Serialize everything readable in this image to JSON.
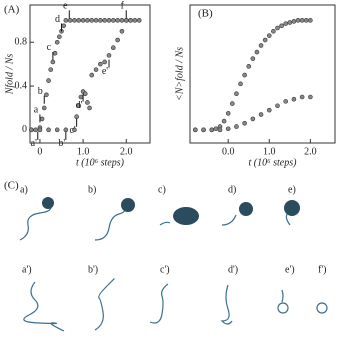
{
  "chart_data": [
    {
      "type": "scatter",
      "panel_label": "(A)",
      "xlabel": "t (10⁶ steps)",
      "ylabel": "Nfold / Ns",
      "xlim": [
        -0.23,
        2.55
      ],
      "ylim": [
        -0.12,
        1.14
      ],
      "xticks": [
        0,
        {
          "value": 1,
          "label": "1.0"
        },
        {
          "value": 2,
          "label": "2.0"
        }
      ],
      "yticks": [
        0,
        0.4,
        0.8
      ],
      "series": [
        {
          "color": "#888888",
          "x": [
            -0.2,
            -0.1,
            0,
            0.05,
            0.1,
            0.15,
            0.2,
            0.25,
            0.3,
            0.35,
            0.4,
            0.45,
            0.5,
            0.55,
            0.6,
            0.7,
            0.8,
            0.9,
            1.0,
            1.1,
            1.2,
            1.3,
            1.4,
            1.5,
            1.6,
            1.7,
            1.8,
            1.9,
            2.0,
            2.1,
            2.2,
            2.3
          ],
          "values": [
            0,
            0,
            0.02,
            0.1,
            0.2,
            0.32,
            0.45,
            0.55,
            0.62,
            0.7,
            0.8,
            0.85,
            0.9,
            0.95,
            1,
            1,
            1,
            1,
            1,
            1,
            1,
            1,
            1,
            1,
            1,
            1,
            1,
            1,
            1,
            1,
            1,
            1
          ]
        },
        {
          "color": "#888888",
          "x": [
            -0.2,
            0,
            0.2,
            0.4,
            0.6,
            0.8,
            0.85,
            0.9,
            0.95,
            1.0,
            1.05,
            1.1,
            1.15,
            1.2,
            1.3,
            1.4,
            1.5,
            1.6,
            1.7,
            1.8,
            1.9,
            2.0,
            2.1
          ],
          "values": [
            0,
            0,
            0,
            0,
            0,
            0,
            0.12,
            0.22,
            0.3,
            0.35,
            0.33,
            0.25,
            0.2,
            0.5,
            0.55,
            0.6,
            0.62,
            0.68,
            0.75,
            0.82,
            0.9,
            1.0,
            1.0
          ]
        }
      ],
      "annotations": [
        {
          "text": "a",
          "x": 0.0,
          "y": 0.05
        },
        {
          "text": "b",
          "x": 0.1,
          "y": 0.22
        },
        {
          "text": "c",
          "x": 0.3,
          "y": 0.62
        },
        {
          "text": "d",
          "x": 0.5,
          "y": 0.88
        },
        {
          "text": "e",
          "x": 0.68,
          "y": 1.0
        },
        {
          "text": "a'",
          "x": -0.05,
          "y": 0.0
        },
        {
          "text": "b'",
          "x": 0.6,
          "y": 0.0
        },
        {
          "text": "c'",
          "x": 0.85,
          "y": 0.12
        },
        {
          "text": "d'",
          "x": 1.0,
          "y": 0.35
        },
        {
          "text": "e'",
          "x": 1.6,
          "y": 0.66
        },
        {
          "text": "f",
          "x": 2.0,
          "y": 1.0
        }
      ]
    },
    {
      "type": "scatter",
      "panel_label": "(B)",
      "xlabel": "t (10⁶ steps)",
      "ylabel": "<N>fold / Ns",
      "xlim": [
        -0.93,
        2.6
      ],
      "ylim": [
        -0.12,
        1.14
      ],
      "xticks": [
        {
          "value": 0,
          "label": "0.0"
        },
        {
          "value": 1,
          "label": "1.0"
        },
        {
          "value": 2,
          "label": "2.0"
        }
      ],
      "yticks": [],
      "series": [
        {
          "color": "#888888",
          "x": [
            -0.8,
            -0.6,
            -0.4,
            -0.3,
            -0.2,
            -0.1,
            0,
            0.1,
            0.2,
            0.3,
            0.4,
            0.5,
            0.6,
            0.7,
            0.8,
            0.9,
            1.0,
            1.1,
            1.2,
            1.3,
            1.4,
            1.5,
            1.6,
            1.7,
            1.8,
            1.9,
            2.0
          ],
          "values": [
            0,
            0,
            0,
            0.01,
            0.03,
            0.08,
            0.15,
            0.24,
            0.33,
            0.42,
            0.5,
            0.58,
            0.65,
            0.71,
            0.77,
            0.82,
            0.86,
            0.9,
            0.93,
            0.95,
            0.97,
            0.98,
            0.99,
            1.0,
            1.0,
            1.0,
            1.0
          ]
        },
        {
          "color": "#888888",
          "x": [
            -0.8,
            -0.6,
            -0.4,
            -0.2,
            0,
            0.2,
            0.4,
            0.6,
            0.8,
            1.0,
            1.2,
            1.4,
            1.6,
            1.8,
            2.0
          ],
          "values": [
            0,
            0,
            0,
            0,
            0.01,
            0.03,
            0.06,
            0.1,
            0.14,
            0.18,
            0.22,
            0.26,
            0.28,
            0.3,
            0.3
          ]
        }
      ]
    }
  ],
  "panel_c": {
    "label": "(C)",
    "top_row": [
      "a)",
      "b)",
      "c)",
      "d)",
      "e)"
    ],
    "bottom_row": [
      "a')",
      "b')",
      "c')",
      "d')",
      "e')",
      "f')"
    ]
  }
}
